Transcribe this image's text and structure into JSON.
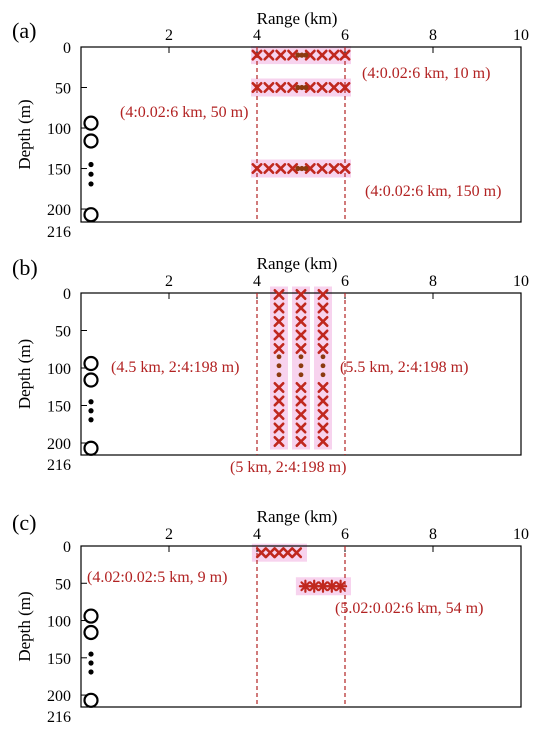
{
  "figure": {
    "colors": {
      "marker": "#c0281e",
      "dot": "#8b3a0f",
      "highlight": "#f7d3ee",
      "annotation": "#b22222",
      "axis": "#000000"
    },
    "x_axis_title": "Range (km)",
    "y_axis_title": "Depth (m)",
    "x_ticks": [
      "2",
      "4",
      "6",
      "8",
      "10"
    ],
    "y_ticks": [
      "0",
      "50",
      "100",
      "150",
      "200"
    ],
    "y_bottom_label": "216",
    "receiver_symbols": "circle-circle-dots-circle",
    "panels": [
      {
        "label": "(a)",
        "annotations": [
          "(4:0.02:6 km, 10 m)",
          "(4:0.02:6 km, 50 m)",
          "(4:0.02:6 km, 150 m)"
        ]
      },
      {
        "label": "(b)",
        "annotations": [
          "(4.5 km, 2:4:198 m)",
          "(5.5 km, 2:4:198 m)",
          "(5 km, 2:4:198 m)"
        ]
      },
      {
        "label": "(c)",
        "annotations": [
          "(4.02:0.02:5 km, 9 m)",
          "(5.02:0.02:6 km, 54 m)"
        ]
      }
    ]
  },
  "chart_data": [
    {
      "type": "scatter",
      "panel": "(a)",
      "xlabel": "Range (km)",
      "ylabel": "Depth (m)",
      "xlim": [
        0,
        10
      ],
      "ylim": [
        216,
        0
      ],
      "x_ticks": [
        2,
        4,
        6,
        8,
        10
      ],
      "y_ticks": [
        0,
        50,
        100,
        150,
        200
      ],
      "vertical_lines_x": [
        4,
        6
      ],
      "receivers": {
        "x": 0.5,
        "depths": [
          94,
          116,
          207
        ],
        "dot_depths": [
          145,
          157,
          169
        ]
      },
      "source_rows": [
        {
          "depth": 10,
          "x_start": 4,
          "x_end": 6,
          "markers_left": [
            4.0,
            4.27,
            4.54,
            4.81
          ],
          "dots": [
            4.93,
            5.02,
            5.11
          ],
          "markers_right": [
            5.21,
            5.48,
            5.75,
            6.0
          ]
        },
        {
          "depth": 50,
          "x_start": 4,
          "x_end": 6,
          "markers_left": [
            4.0,
            4.27,
            4.54,
            4.81
          ],
          "dots": [
            4.93,
            5.02,
            5.11
          ],
          "markers_right": [
            5.21,
            5.48,
            5.75,
            6.0
          ]
        },
        {
          "depth": 150,
          "x_start": 4,
          "x_end": 6,
          "markers_left": [
            4.0,
            4.27,
            4.54,
            4.81
          ],
          "dots": [
            4.93,
            5.02,
            5.11
          ],
          "markers_right": [
            5.21,
            5.48,
            5.75,
            6.0
          ]
        }
      ],
      "annotations": [
        {
          "text": "(4:0.02:6 km, 10 m)"
        },
        {
          "text": "(4:0.02:6 km, 50 m)"
        },
        {
          "text": "(4:0.02:6 km, 150 m)"
        }
      ]
    },
    {
      "type": "scatter",
      "panel": "(b)",
      "xlabel": "Range (km)",
      "ylabel": "Depth (m)",
      "xlim": [
        0,
        10
      ],
      "ylim": [
        216,
        0
      ],
      "x_ticks": [
        2,
        4,
        6,
        8,
        10
      ],
      "y_ticks": [
        0,
        50,
        100,
        150,
        200
      ],
      "vertical_lines_x": [
        4,
        6
      ],
      "receivers": {
        "x": 0.5,
        "depths": [
          94,
          116,
          207
        ],
        "dot_depths": [
          145,
          157,
          169
        ]
      },
      "source_columns": [
        {
          "x": 4.5,
          "depth_start": 2,
          "depth_end": 198,
          "markers_top": [
            2,
            20,
            38,
            56,
            74
          ],
          "dots": [
            85,
            97,
            109
          ],
          "markers_bottom": [
            126,
            144,
            162,
            180,
            198
          ]
        },
        {
          "x": 5.0,
          "depth_start": 2,
          "depth_end": 198,
          "markers_top": [
            2,
            20,
            38,
            56,
            74
          ],
          "dots": [
            85,
            97,
            109
          ],
          "markers_bottom": [
            126,
            144,
            162,
            180,
            198
          ]
        },
        {
          "x": 5.5,
          "depth_start": 2,
          "depth_end": 198,
          "markers_top": [
            2,
            20,
            38,
            56,
            74
          ],
          "dots": [
            85,
            97,
            109
          ],
          "markers_bottom": [
            126,
            144,
            162,
            180,
            198
          ]
        }
      ],
      "annotations": [
        {
          "text": "(4.5 km, 2:4:198 m)"
        },
        {
          "text": "(5.5 km, 2:4:198 m)"
        },
        {
          "text": "(5 km, 2:4:198 m)"
        }
      ]
    },
    {
      "type": "scatter",
      "panel": "(c)",
      "xlabel": "Range (km)",
      "ylabel": "Depth (m)",
      "xlim": [
        0,
        10
      ],
      "ylim": [
        216,
        0
      ],
      "x_ticks": [
        2,
        4,
        6,
        8,
        10
      ],
      "y_ticks": [
        0,
        50,
        100,
        150,
        200
      ],
      "vertical_lines_x": [
        4,
        6
      ],
      "receivers": {
        "x": 0.5,
        "depths": [
          94,
          116,
          207
        ],
        "dot_depths": [
          145,
          157,
          169
        ]
      },
      "source_rows": [
        {
          "depth": 9,
          "x_start": 4.02,
          "x_end": 5,
          "marker": "x",
          "positions": [
            4.1,
            4.3,
            4.5,
            4.7,
            4.9
          ]
        },
        {
          "depth": 54,
          "x_start": 5.02,
          "x_end": 6,
          "marker": "star",
          "positions": [
            5.1,
            5.3,
            5.5,
            5.7,
            5.9
          ]
        }
      ],
      "annotations": [
        {
          "text": "(4.02:0.02:5 km, 9 m)"
        },
        {
          "text": "(5.02:0.02:6 km, 54 m)"
        }
      ]
    }
  ]
}
